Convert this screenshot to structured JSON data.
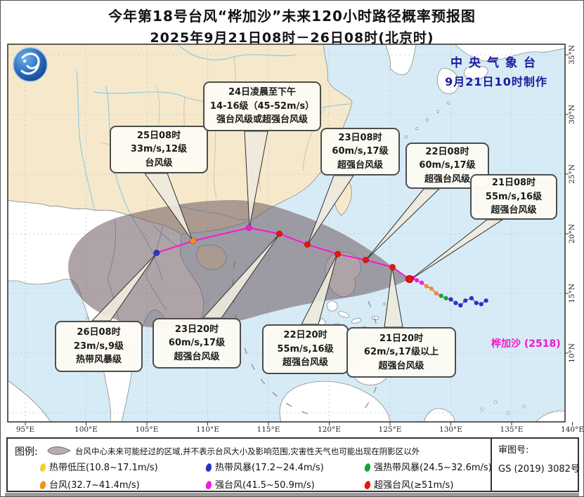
{
  "title": {
    "line1": "今年第18号台风“桦加沙”未来120小时路径概率预报图",
    "line2": "2025年9月21日08时－26日08时(北京时)"
  },
  "credit": {
    "line1": "中央气象台",
    "line2": "9月21日10时制作"
  },
  "storm_label": "桦加沙 (2518)",
  "axes": {
    "lon_ticks": [
      {
        "v": 95,
        "label": "95°E"
      },
      {
        "v": 100,
        "label": "100°E"
      },
      {
        "v": 105,
        "label": "105°E"
      },
      {
        "v": 110,
        "label": "110°E"
      },
      {
        "v": 115,
        "label": "115°E"
      },
      {
        "v": 120,
        "label": "120°E"
      },
      {
        "v": 125,
        "label": "125°E"
      },
      {
        "v": 130,
        "label": "130°E"
      },
      {
        "v": 135,
        "label": "135°E"
      },
      {
        "v": 140,
        "label": "140°E"
      }
    ],
    "lat_ticks": [
      {
        "v": 35,
        "label": "35°N"
      },
      {
        "v": 30,
        "label": "30°N"
      },
      {
        "v": 25,
        "label": "25°N"
      },
      {
        "v": 20,
        "label": "20°N"
      },
      {
        "v": 15,
        "label": "15°N"
      },
      {
        "v": 10,
        "label": "10°N"
      }
    ]
  },
  "forecast_boxes": [
    {
      "id": "25d08h",
      "lines": [
        "25日08时",
        "33m/s,12级",
        "台风级"
      ]
    },
    {
      "id": "24d",
      "lines": [
        "24日凌晨至下午",
        "14-16级（45-52m/s）",
        "强台风级或超强台风级"
      ]
    },
    {
      "id": "23d08h",
      "lines": [
        "23日08时",
        "60m/s,17级",
        "超强台风级"
      ]
    },
    {
      "id": "22d08h",
      "lines": [
        "22日08时",
        "60m/s,17级",
        "超强台风级"
      ]
    },
    {
      "id": "21d08h",
      "lines": [
        "21日08时",
        "55m/s,16级",
        "超强台风级"
      ]
    },
    {
      "id": "26d08h",
      "lines": [
        "26日08时",
        "23m/s,9级",
        "热带风暴级"
      ]
    },
    {
      "id": "23d20h",
      "lines": [
        "23日20时",
        "60m/s,17级",
        "超强台风级"
      ]
    },
    {
      "id": "22d20h",
      "lines": [
        "22日20时",
        "55m/s,16级",
        "超强台风级"
      ]
    },
    {
      "id": "21d20h",
      "lines": [
        "21日20时",
        "62m/s,17级以上",
        "超强台风级"
      ]
    }
  ],
  "legend": {
    "heading": "图例:",
    "cone_note": "台风中心未来可能经过的区域,并不表示台风大小及影响范围,灾害性天气也可能出现在阴影区以外",
    "items": [
      {
        "label": "热带低压(10.8~17.1m/s)",
        "color": "#f2d12e"
      },
      {
        "label": "热带风暴(17.2~24.4m/s)",
        "color": "#2435c8"
      },
      {
        "label": "强热带风暴(24.5~32.6m/s)",
        "color": "#18a03c"
      },
      {
        "label": "台风(32.7~41.4m/s)",
        "color": "#f5901e"
      },
      {
        "label": "强台风(41.5~50.9m/s)",
        "color": "#eb1fd9"
      },
      {
        "label": "超强台风(≥51m/s)",
        "color": "#e8150c"
      }
    ]
  },
  "approval": {
    "label": "审图号:",
    "number": "GS (2019) 3082号"
  },
  "chart_data": {
    "type": "map-track",
    "storm": "桦加沙 (2518)",
    "intensity_colors": {
      "TD": "#f2d12e",
      "TS": "#2435c8",
      "STS": "#18a03c",
      "TY": "#f5901e",
      "STY": "#eb1fd9",
      "SuperTY": "#e8150c"
    },
    "history": [
      {
        "lon": 132.9,
        "lat": 14.4,
        "cat": "TS"
      },
      {
        "lon": 132.5,
        "lat": 14.1,
        "cat": "TS"
      },
      {
        "lon": 132.1,
        "lat": 14.2,
        "cat": "TS"
      },
      {
        "lon": 131.7,
        "lat": 14.6,
        "cat": "TS"
      },
      {
        "lon": 131.2,
        "lat": 14.4,
        "cat": "TS"
      },
      {
        "lon": 130.8,
        "lat": 14.0,
        "cat": "TS"
      },
      {
        "lon": 130.4,
        "lat": 14.2,
        "cat": "TS"
      },
      {
        "lon": 130.0,
        "lat": 14.5,
        "cat": "TS"
      },
      {
        "lon": 129.6,
        "lat": 14.6,
        "cat": "STS"
      },
      {
        "lon": 129.2,
        "lat": 14.8,
        "cat": "STS"
      },
      {
        "lon": 128.8,
        "lat": 15.0,
        "cat": "TY"
      },
      {
        "lon": 128.4,
        "lat": 15.4,
        "cat": "TY"
      },
      {
        "lon": 128.0,
        "lat": 15.6,
        "cat": "TY"
      },
      {
        "lon": 127.6,
        "lat": 15.9,
        "cat": "STY"
      },
      {
        "lon": 127.2,
        "lat": 16.1,
        "cat": "STY"
      },
      {
        "lon": 126.9,
        "lat": 16.3,
        "cat": "STY"
      }
    ],
    "current": {
      "lon": 126.6,
      "lat": 16.2,
      "cat": "SuperTY",
      "time": "21日08时",
      "wind": "55m/s,16级"
    },
    "forecast": [
      {
        "lon": 125.2,
        "lat": 17.2,
        "cat": "SuperTY",
        "time": "21日20时",
        "wind": "62m/s,17级以上"
      },
      {
        "lon": 123.0,
        "lat": 17.8,
        "cat": "SuperTY",
        "time": "22日08时",
        "wind": "60m/s,17级"
      },
      {
        "lon": 120.7,
        "lat": 18.3,
        "cat": "SuperTY",
        "time": "22日20时",
        "wind": "55m/s,16级"
      },
      {
        "lon": 118.2,
        "lat": 19.1,
        "cat": "SuperTY",
        "time": "23日08时",
        "wind": "60m/s,17级"
      },
      {
        "lon": 115.9,
        "lat": 20.0,
        "cat": "SuperTY",
        "time": "23日20时",
        "wind": "60m/s,17级"
      },
      {
        "lon": 113.4,
        "lat": 20.5,
        "cat": "STY",
        "time": "24日08时",
        "wind": "14-16级（45-52m/s）"
      },
      {
        "lon": 108.8,
        "lat": 19.4,
        "cat": "TY",
        "time": "25日08时",
        "wind": "33m/s,12级"
      },
      {
        "lon": 105.8,
        "lat": 18.4,
        "cat": "TS",
        "time": "26日08时",
        "wind": "23m/s,9级"
      }
    ]
  }
}
